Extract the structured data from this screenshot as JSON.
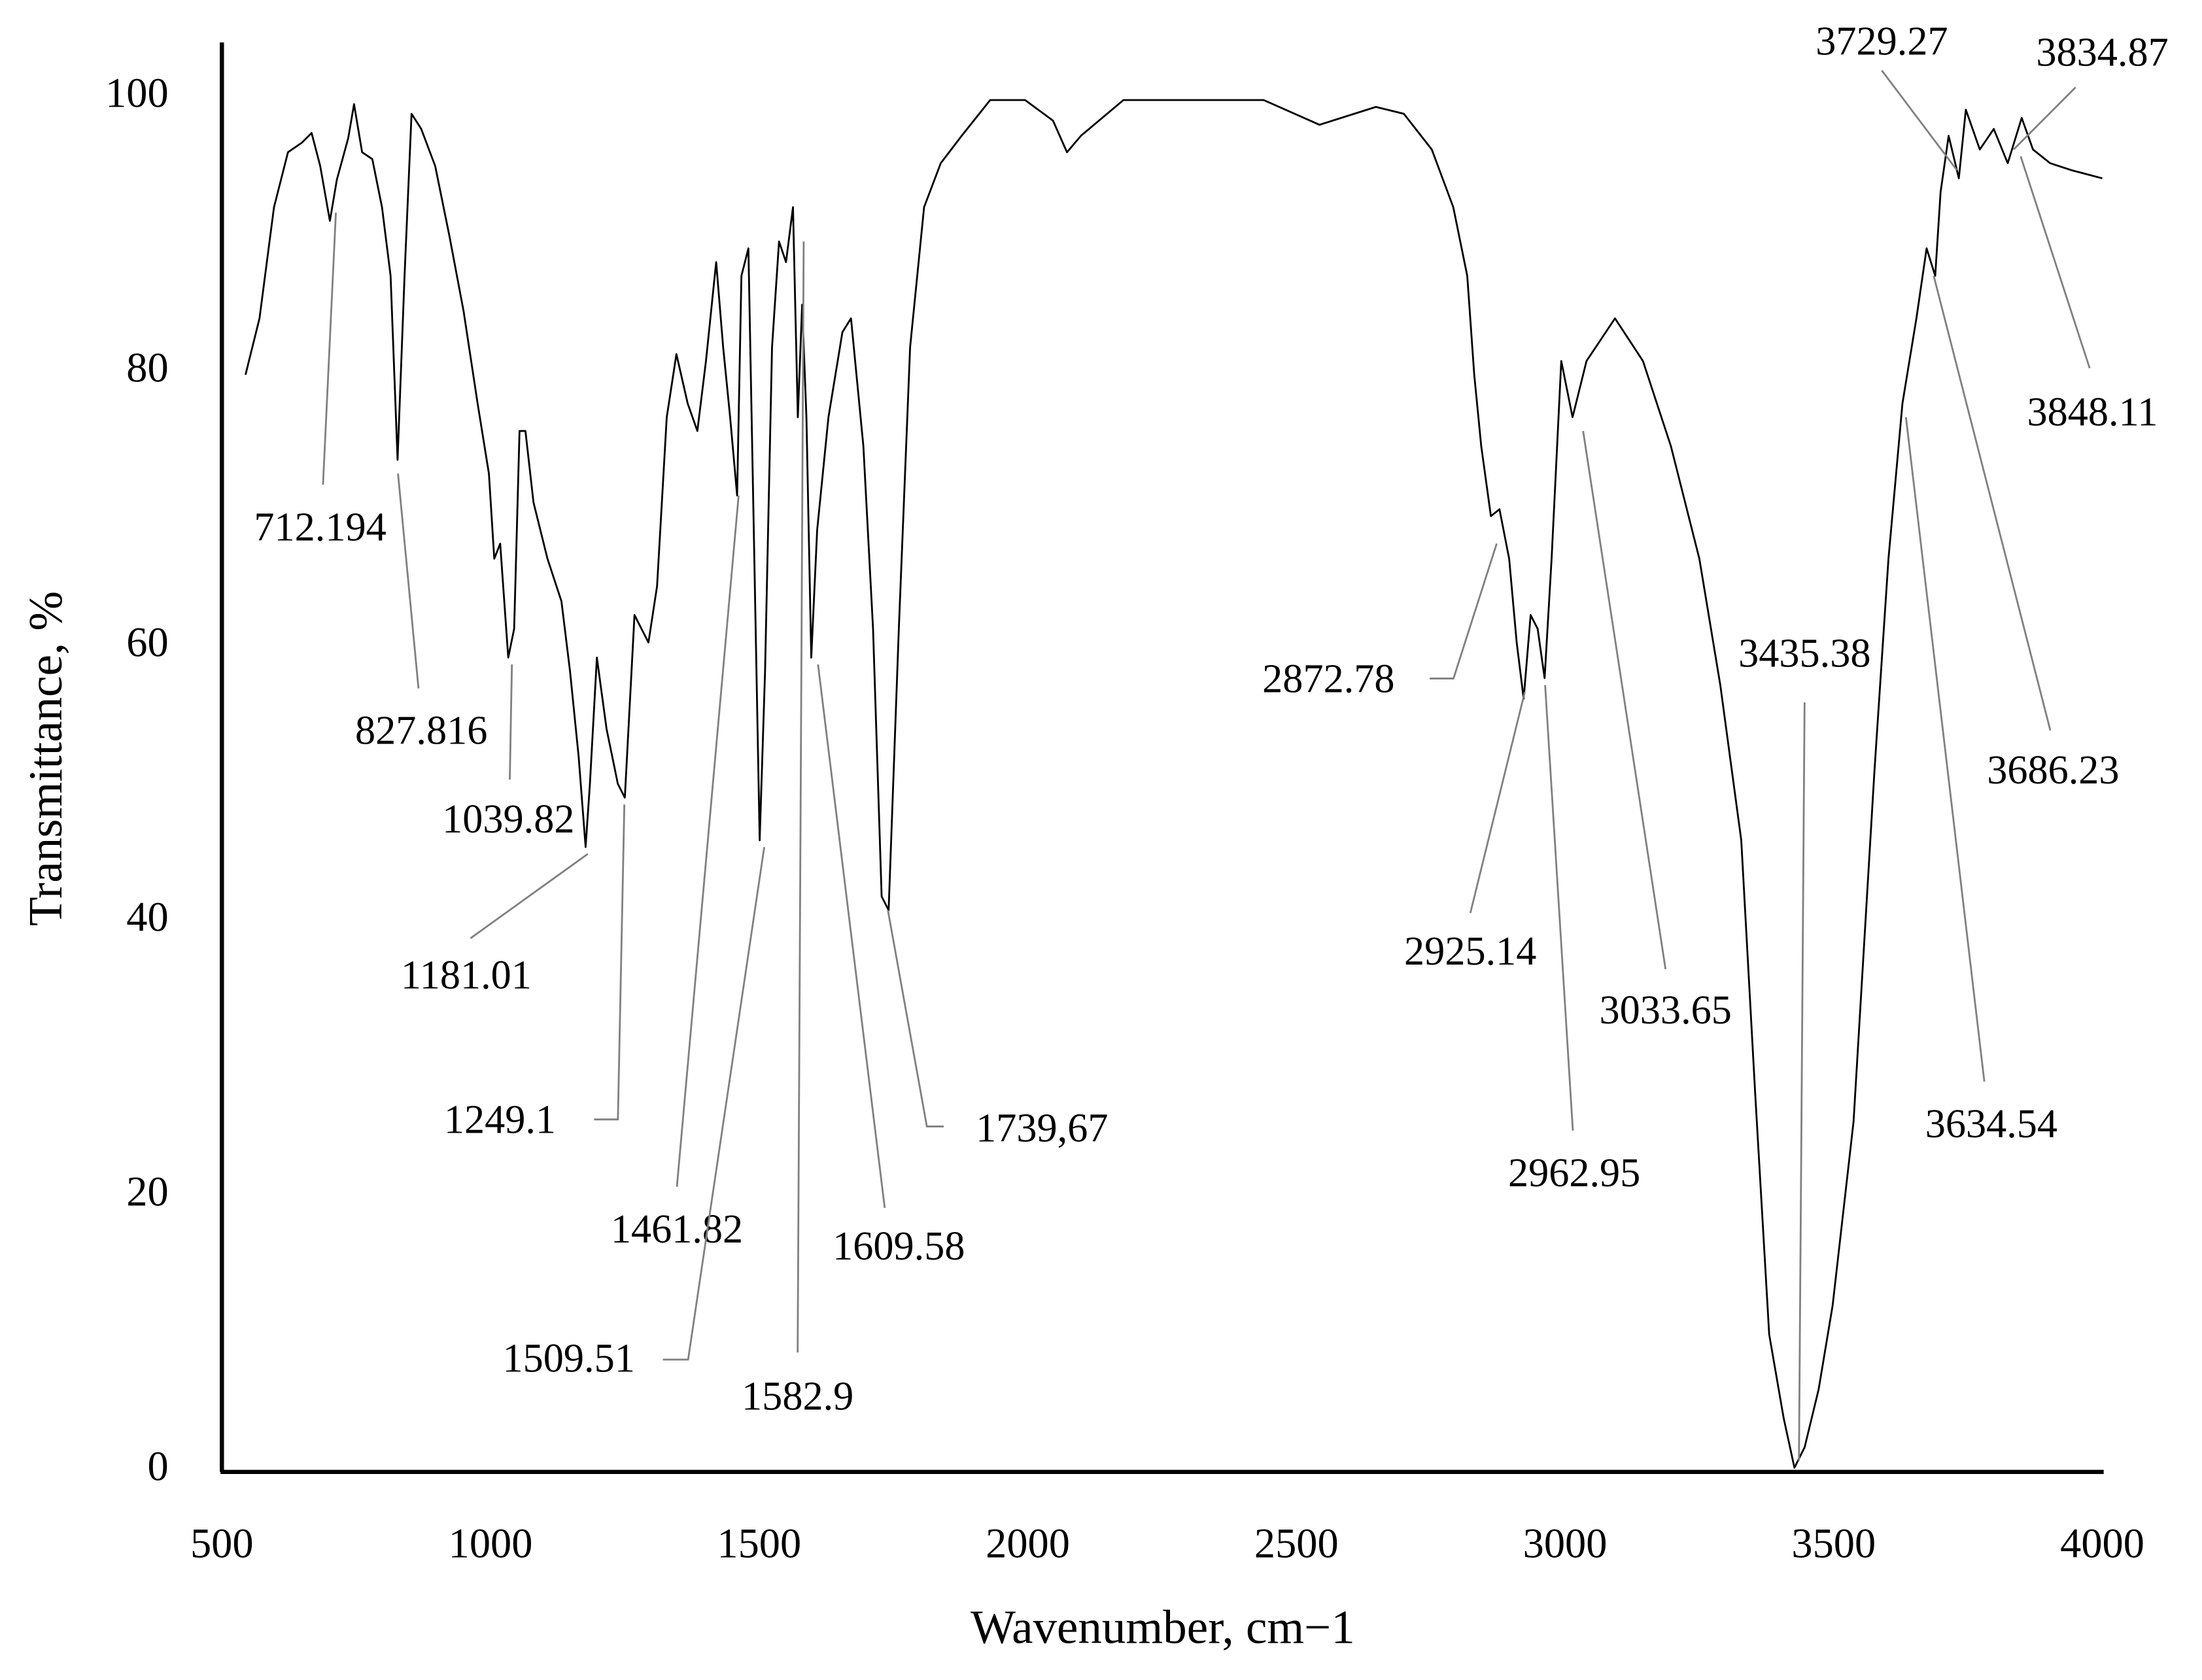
{
  "chart_data": {
    "type": "line",
    "xlabel": "Wavenumber, cm−1",
    "ylabel": "Transmittance, %",
    "xlim": [
      500,
      4000
    ],
    "ylim": [
      0,
      104
    ],
    "xticks": [
      500,
      1000,
      1500,
      2000,
      2500,
      3000,
      3500,
      4000
    ],
    "yticks": [
      0,
      20,
      40,
      60,
      80,
      100
    ],
    "color": "#000000",
    "x": [
      544,
      570,
      597,
      623,
      649,
      667,
      683,
      701,
      714,
      735,
      746,
      761,
      780,
      798,
      814,
      827,
      840,
      853,
      871,
      897,
      923,
      950,
      976,
      997,
      1007,
      1018,
      1033,
      1044,
      1054,
      1065,
      1080,
      1106,
      1132,
      1148,
      1164,
      1177,
      1185,
      1198,
      1216,
      1237,
      1250,
      1268,
      1294,
      1310,
      1328,
      1346,
      1367,
      1385,
      1401,
      1420,
      1433,
      1446,
      1459,
      1467,
      1480,
      1490,
      1501,
      1511,
      1524,
      1537,
      1550,
      1563,
      1572,
      1580,
      1588,
      1597,
      1608,
      1629,
      1655,
      1671,
      1694,
      1712,
      1728,
      1741,
      1760,
      1781,
      1807,
      1838,
      1877,
      1930,
      1995,
      2047,
      2073,
      2099,
      2178,
      2439,
      2543,
      2648,
      2700,
      2752,
      2792,
      2818,
      2831,
      2844,
      2862,
      2878,
      2896,
      2910,
      2923,
      2936,
      2949,
      2962,
      2975,
      2993,
      3014,
      3040,
      3093,
      3145,
      3197,
      3250,
      3289,
      3328,
      3354,
      3380,
      3407,
      3427,
      3446,
      3472,
      3498,
      3537,
      3576,
      3602,
      3628,
      3654,
      3673,
      3689,
      3699,
      3714,
      3733,
      3746,
      3772,
      3798,
      3824,
      3850,
      3871,
      3903,
      3942,
      4000
    ],
    "values": [
      79.8,
      83.9,
      92,
      96,
      96.7,
      97.4,
      95,
      91,
      94,
      97,
      99.5,
      96,
      95.5,
      92,
      87,
      73.6,
      87,
      98.8,
      97.7,
      95,
      90,
      84.4,
      77.7,
      72.6,
      66.4,
      67.5,
      59.2,
      61.3,
      75.7,
      75.7,
      70.5,
      66.4,
      63.3,
      58.2,
      52,
      45.4,
      50,
      59.2,
      54,
      50,
      49,
      62.3,
      60.3,
      64.4,
      76.7,
      81.3,
      77.7,
      75.7,
      80.8,
      88,
      81.8,
      76.7,
      71,
      87,
      89,
      68.5,
      45.9,
      58.2,
      81.8,
      89.5,
      88,
      92,
      76.7,
      84.9,
      76.7,
      59.2,
      68.5,
      76.7,
      82.9,
      83.9,
      74.6,
      61.3,
      41.8,
      40.8,
      61.3,
      81.8,
      92,
      95.2,
      97.2,
      99.8,
      99.8,
      98.3,
      96,
      97.2,
      99.8,
      99.8,
      98,
      99.3,
      98.8,
      96.2,
      92,
      87,
      79.8,
      74.6,
      69.5,
      70,
      66.4,
      60.3,
      56.2,
      62.3,
      61.3,
      57.7,
      66.4,
      80.8,
      76.7,
      80.8,
      83.9,
      80.8,
      74.6,
      66.4,
      57.2,
      45.9,
      27.4,
      9.9,
      3.8,
      0.2,
      1.7,
      5.9,
      12,
      25.4,
      51,
      66.4,
      77.7,
      83.9,
      89,
      87,
      93.1,
      97.2,
      94.1,
      99.1,
      96.2,
      97.7,
      95.2,
      98.5,
      96.2,
      95.2,
      94.7,
      94.1
    ],
    "annotations": [
      {
        "text": "712.194",
        "x": 712.194,
        "y": 91.6
      },
      {
        "text": "827.816",
        "x": 827.816,
        "y": 72.6
      },
      {
        "text": "1039.82",
        "x": 1039.82,
        "y": 58.7
      },
      {
        "text": "1181.01",
        "x": 1181.01,
        "y": 44.9
      },
      {
        "text": "1249.1",
        "x": 1249.1,
        "y": 48.5
      },
      {
        "text": "1461.82",
        "x": 1461.82,
        "y": 71
      },
      {
        "text": "1509.51",
        "x": 1509.51,
        "y": 45.4
      },
      {
        "text": "1582.9",
        "x": 1582.9,
        "y": 89.5
      },
      {
        "text": "1609.58",
        "x": 1609.58,
        "y": 58.7
      },
      {
        "text": "1739,67",
        "x": 1739.67,
        "y": 40.8
      },
      {
        "text": "2872.78",
        "x": 2872.78,
        "y": 67.5
      },
      {
        "text": "2925.14",
        "x": 2925.14,
        "y": 56.7
      },
      {
        "text": "2962.95",
        "x": 2962.95,
        "y": 57.2
      },
      {
        "text": "3033.65",
        "x": 3033.65,
        "y": 75.7
      },
      {
        "text": "3435.38",
        "x": 3435.38,
        "y": 0.7
      },
      {
        "text": "3634.54",
        "x": 3634.54,
        "y": 76.7
      },
      {
        "text": "3686.23",
        "x": 3686.23,
        "y": 87
      },
      {
        "text": "3729.27",
        "x": 3729.27,
        "y": 94.7
      },
      {
        "text": "3834.87",
        "x": 3834.87,
        "y": 96.2
      },
      {
        "text": "3848.11",
        "x": 3848.11,
        "y": 95.7
      }
    ]
  }
}
